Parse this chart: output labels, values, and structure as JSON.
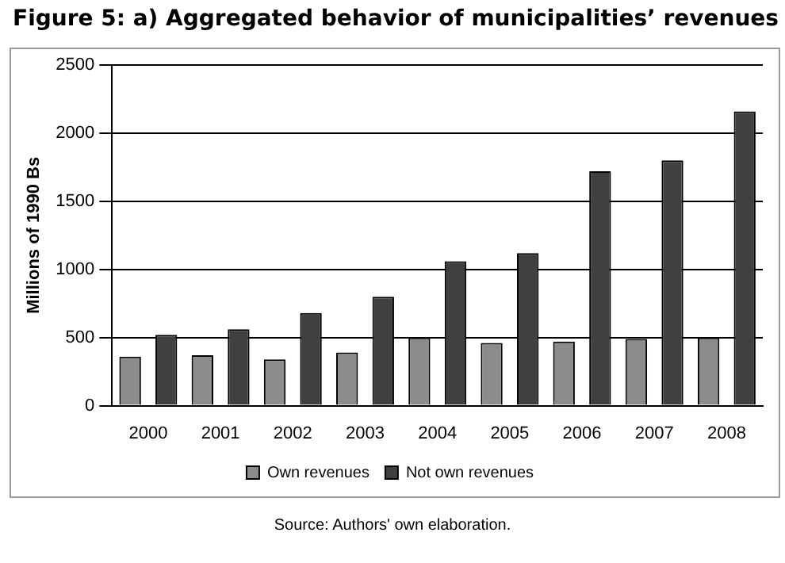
{
  "chart_data": {
    "type": "bar",
    "title": "Figure  5: a) Aggregated behavior of municipalities’ revenues",
    "ylabel": "Millions of 1990 Bs",
    "categories": [
      "2000",
      "2001",
      "2002",
      "2003",
      "2004",
      "2005",
      "2006",
      "2007",
      "2008"
    ],
    "series": [
      {
        "name": "Own revenues",
        "color": "#8c8c8c",
        "values": [
          360,
          370,
          340,
          390,
          500,
          460,
          470,
          490,
          500
        ]
      },
      {
        "name": "Not own revenues",
        "color": "#404040",
        "values": [
          520,
          560,
          680,
          800,
          1060,
          1120,
          1720,
          1800,
          2160
        ]
      }
    ],
    "ylim": [
      0,
      2500
    ],
    "yticks": [
      0,
      500,
      1000,
      1500,
      2000,
      2500
    ],
    "grid": "y",
    "legend": "bottom",
    "annotations": [
      "Source: Authors' own elaboration."
    ]
  }
}
